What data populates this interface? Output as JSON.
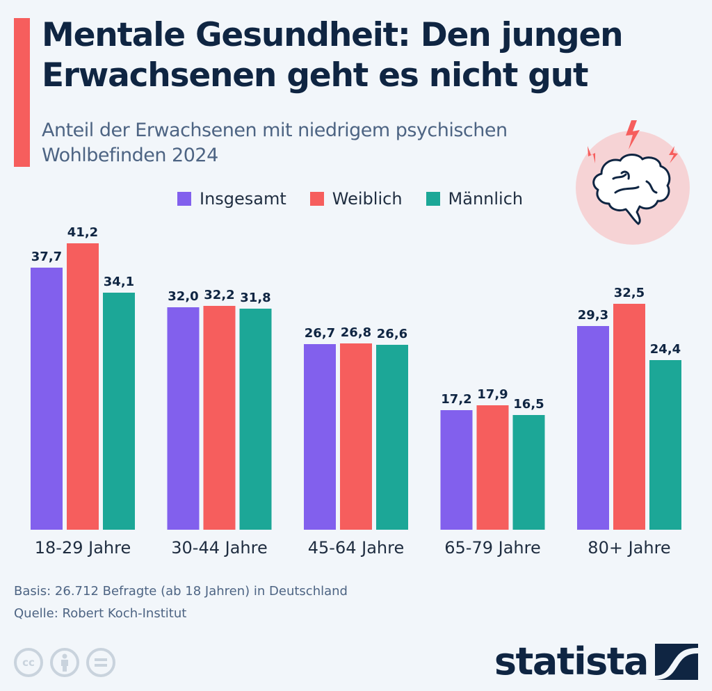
{
  "header": {
    "title": "Mentale Gesundheit: Den jungen Erwachsenen geht es nicht gut",
    "subtitle": "Anteil der Erwachsenen mit niedrigem psychischen Wohlbefinden 2024",
    "icon": "brain-icon"
  },
  "legend": [
    {
      "label": "Insgesamt",
      "color": "#8260ed"
    },
    {
      "label": "Weiblich",
      "color": "#f65e5d"
    },
    {
      "label": "Männlich",
      "color": "#1ca797"
    }
  ],
  "chart_data": {
    "type": "bar",
    "title": "Mentale Gesundheit: Den jungen Erwachsenen geht es nicht gut",
    "subtitle": "Anteil der Erwachsenen mit niedrigem psychischen Wohlbefinden 2024",
    "xlabel": "",
    "ylabel": "",
    "ylim": [
      0,
      45
    ],
    "grid": false,
    "legend_position": "top",
    "categories": [
      "18-29 Jahre",
      "30-44 Jahre",
      "45-64 Jahre",
      "65-79 Jahre",
      "80+ Jahre"
    ],
    "series": [
      {
        "name": "Insgesamt",
        "color": "#8260ed",
        "values": [
          37.7,
          32.0,
          26.7,
          17.2,
          29.3
        ],
        "labels": [
          "37,7",
          "32,0",
          "26,7",
          "17,2",
          "29,3"
        ]
      },
      {
        "name": "Weiblich",
        "color": "#f65e5d",
        "values": [
          41.2,
          32.2,
          26.8,
          17.9,
          32.5
        ],
        "labels": [
          "41,2",
          "32,2",
          "26,8",
          "17,9",
          "32,5"
        ]
      },
      {
        "name": "Männlich",
        "color": "#1ca797",
        "values": [
          34.1,
          31.8,
          26.6,
          16.5,
          24.4
        ],
        "labels": [
          "34,1",
          "31,8",
          "26,6",
          "16,5",
          "24,4"
        ]
      }
    ]
  },
  "footer": {
    "basis": "Basis: 26.712 Befragte (ab 18 Jahren) in Deutschland",
    "source": "Quelle: Robert Koch-Institut",
    "license_icons": [
      "cc-icon",
      "attribution-icon",
      "no-derivatives-icon"
    ],
    "cc_text": "cc",
    "logo_text": "statista"
  },
  "colors": {
    "accent": "#f65e5d",
    "title": "#0f2542",
    "background": "#f2f6fa"
  }
}
